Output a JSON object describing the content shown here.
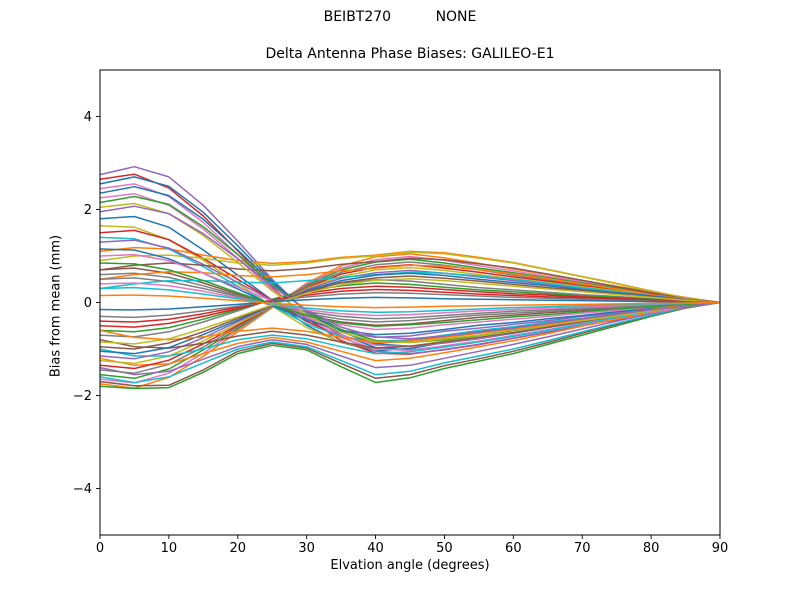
{
  "figure": {
    "suptitle": "BEIBT270          NONE",
    "title": "Delta Antenna Phase Biases: GALILEO-E1"
  },
  "chart_data": {
    "type": "line",
    "suptitle": "BEIBT270          NONE",
    "title": "Delta Antenna Phase Biases: GALILEO-E1",
    "xlabel": "Elvation angle (degrees)",
    "ylabel": "Bias from mean (mm)",
    "xlim": [
      0,
      90
    ],
    "ylim": [
      -5,
      5
    ],
    "xticks": [
      0,
      10,
      20,
      30,
      40,
      50,
      60,
      70,
      80,
      90
    ],
    "xtick_labels": [
      "0",
      "10",
      "20",
      "30",
      "40",
      "50",
      "60",
      "70",
      "80",
      "90"
    ],
    "yticks": [
      -4,
      -2,
      0,
      2,
      4
    ],
    "ytick_labels": [
      "−4",
      "−2",
      "0",
      "2",
      "4"
    ],
    "grid": false,
    "legend": "none",
    "line_width": 1.5,
    "color_cycle": [
      "#1f77b4",
      "#ff7f0e",
      "#2ca02c",
      "#d62728",
      "#9467bd",
      "#8c564b",
      "#e377c2",
      "#7f7f7f",
      "#bcbd22",
      "#17becf"
    ],
    "x": [
      0,
      5,
      10,
      15,
      20,
      25,
      30,
      35,
      40,
      45,
      50,
      55,
      60,
      65,
      70,
      75,
      80,
      85,
      90
    ],
    "series": [
      {
        "values": [
          1.8,
          1.85,
          1.62,
          1.13,
          0.59,
          0.05,
          -0.49,
          -0.86,
          -1.04,
          -0.99,
          -0.86,
          -0.76,
          -0.65,
          -0.54,
          -0.41,
          -0.31,
          -0.18,
          -0.07,
          0
        ]
      },
      {
        "values": [
          -1.75,
          -1.84,
          -1.61,
          -1.16,
          -0.63,
          -0.11,
          0.42,
          0.79,
          0.98,
          1.05,
          0.96,
          0.84,
          0.72,
          0.6,
          0.47,
          0.35,
          0.23,
          0.11,
          0
        ]
      },
      {
        "values": [
          -1.8,
          -1.85,
          -1.83,
          -1.5,
          -1.1,
          -0.92,
          -1.02,
          -1.38,
          -1.72,
          -1.62,
          -1.42,
          -1.26,
          -1.1,
          -0.9,
          -0.7,
          -0.5,
          -0.3,
          -0.12,
          0
        ]
      },
      {
        "values": [
          2.65,
          2.76,
          2.46,
          1.86,
          1.11,
          0.32,
          -0.34,
          -0.82,
          -1.09,
          -1.11,
          -1.01,
          -0.9,
          -0.77,
          -0.64,
          -0.5,
          -0.37,
          -0.24,
          -0.11,
          0
        ]
      },
      {
        "values": [
          2.75,
          2.92,
          2.7,
          2.09,
          1.32,
          0.5,
          -0.22,
          -0.74,
          -1.05,
          -1.1,
          -1.02,
          -0.91,
          -0.77,
          -0.63,
          -0.5,
          -0.36,
          -0.22,
          -0.11,
          0
        ]
      },
      {
        "values": [
          -1.7,
          -1.79,
          -1.78,
          -1.45,
          -1.05,
          -0.88,
          -0.98,
          -1.31,
          -1.63,
          -1.55,
          -1.36,
          -1.21,
          -1.05,
          -0.86,
          -0.66,
          -0.47,
          -0.28,
          -0.11,
          0
        ]
      },
      {
        "values": [
          -1.65,
          -1.73,
          -1.52,
          -1.09,
          -0.59,
          -0.1,
          0.4,
          0.74,
          0.92,
          0.99,
          0.91,
          0.79,
          0.68,
          0.56,
          0.45,
          0.33,
          0.21,
          0.1,
          0
        ]
      },
      {
        "values": [
          -0.7,
          -0.74,
          -0.63,
          -0.42,
          -0.18,
          0.07,
          0.28,
          0.42,
          0.49,
          0.46,
          0.39,
          0.32,
          0.27,
          0.22,
          0.17,
          0.13,
          0.08,
          0.04,
          0
        ]
      },
      {
        "values": [
          1.65,
          1.62,
          1.35,
          0.91,
          0.41,
          -0.08,
          -0.54,
          -0.86,
          -0.99,
          -0.94,
          -0.83,
          -0.71,
          -0.61,
          -0.5,
          -0.4,
          -0.28,
          -0.18,
          -0.08,
          0
        ]
      },
      {
        "values": [
          -1.6,
          -1.72,
          -1.6,
          -1.3,
          -1.0,
          -0.85,
          -0.95,
          -1.25,
          -1.55,
          -1.48,
          -1.3,
          -1.15,
          -1.0,
          -0.82,
          -0.63,
          -0.45,
          -0.27,
          -0.1,
          0
        ]
      },
      {
        "values": [
          2.55,
          2.7,
          2.5,
          1.94,
          1.22,
          0.46,
          -0.2,
          -0.69,
          -0.97,
          -1.02,
          -0.94,
          -0.84,
          -0.71,
          -0.59,
          -0.46,
          -0.33,
          -0.2,
          -0.1,
          0
        ]
      },
      {
        "values": [
          1.1,
          1.18,
          1.15,
          1.02,
          0.9,
          0.84,
          0.88,
          0.97,
          1.02,
          1.1,
          1.07,
          0.97,
          0.86,
          0.71,
          0.56,
          0.41,
          0.25,
          0.1,
          0
        ]
      },
      {
        "values": [
          -1.55,
          -1.63,
          -1.43,
          -1.02,
          -0.56,
          -0.09,
          0.37,
          0.7,
          0.87,
          0.93,
          0.85,
          0.74,
          0.64,
          0.53,
          0.42,
          0.31,
          0.2,
          0.09,
          0
        ]
      },
      {
        "values": [
          1.5,
          1.55,
          1.35,
          0.95,
          0.5,
          0.05,
          -0.41,
          -0.72,
          -0.87,
          -0.83,
          -0.72,
          -0.63,
          -0.54,
          -0.45,
          -0.35,
          -0.26,
          -0.15,
          -0.06,
          0
        ]
      },
      {
        "values": [
          -1.4,
          -1.55,
          -1.48,
          -1.22,
          -0.95,
          -0.8,
          -0.9,
          -1.15,
          -1.4,
          -1.35,
          -1.2,
          -1.05,
          -0.9,
          -0.74,
          -0.57,
          -0.4,
          -0.24,
          -0.09,
          0
        ]
      },
      {
        "values": [
          0.7,
          0.74,
          0.63,
          0.42,
          0.18,
          -0.07,
          -0.28,
          -0.42,
          -0.49,
          -0.46,
          -0.39,
          -0.32,
          -0.27,
          -0.22,
          -0.17,
          -0.13,
          -0.08,
          -0.04,
          0
        ]
      },
      {
        "values": [
          2.45,
          2.55,
          2.28,
          1.72,
          1.03,
          0.29,
          -0.32,
          -0.76,
          -1.0,
          -1.03,
          -0.93,
          -0.83,
          -0.71,
          -0.59,
          -0.47,
          -0.34,
          -0.22,
          -0.1,
          0
        ]
      },
      {
        "values": [
          -1.45,
          -1.52,
          -1.33,
          -0.96,
          -0.52,
          -0.09,
          0.35,
          0.65,
          0.81,
          0.87,
          0.8,
          0.7,
          0.59,
          0.49,
          0.39,
          0.29,
          0.19,
          0.09,
          0
        ]
      },
      {
        "values": [
          0.9,
          1.0,
          1.02,
          0.95,
          0.85,
          0.8,
          0.85,
          0.95,
          1.0,
          1.08,
          1.05,
          0.95,
          0.85,
          0.7,
          0.55,
          0.4,
          0.24,
          0.1,
          0
        ]
      },
      {
        "values": [
          1.4,
          1.37,
          1.15,
          0.77,
          0.35,
          -0.07,
          -0.46,
          -0.73,
          -0.84,
          -0.8,
          -0.7,
          -0.6,
          -0.52,
          -0.42,
          -0.34,
          -0.24,
          -0.15,
          -0.07,
          0
        ]
      },
      {
        "values": [
          2.35,
          2.49,
          2.3,
          1.79,
          1.13,
          0.42,
          -0.19,
          -0.63,
          -0.89,
          -0.94,
          -0.87,
          -0.78,
          -0.66,
          -0.54,
          -0.42,
          -0.31,
          -0.19,
          -0.09,
          0
        ]
      },
      {
        "values": [
          -1.2,
          -1.35,
          -1.32,
          -1.1,
          -0.88,
          -0.75,
          -0.85,
          -1.05,
          -1.25,
          -1.2,
          -1.08,
          -0.95,
          -0.82,
          -0.67,
          -0.51,
          -0.36,
          -0.21,
          -0.08,
          0
        ]
      },
      {
        "values": [
          -0.6,
          -0.63,
          -0.54,
          -0.36,
          -0.15,
          0.06,
          0.24,
          0.36,
          0.42,
          0.39,
          0.33,
          0.27,
          0.23,
          0.19,
          0.14,
          0.11,
          0.07,
          0.03,
          0
        ]
      },
      {
        "values": [
          -1.35,
          -1.42,
          -1.24,
          -0.89,
          -0.49,
          -0.08,
          0.32,
          0.61,
          0.76,
          0.81,
          0.74,
          0.65,
          0.55,
          0.46,
          0.36,
          0.27,
          0.18,
          0.08,
          0
        ]
      },
      {
        "values": [
          1.3,
          1.34,
          1.17,
          0.82,
          0.43,
          0.04,
          -0.35,
          -0.62,
          -0.75,
          -0.72,
          -0.62,
          -0.55,
          -0.47,
          -0.39,
          -0.3,
          -0.22,
          -0.13,
          -0.05,
          0
        ]
      },
      {
        "values": [
          0.7,
          0.8,
          0.85,
          0.8,
          0.72,
          0.68,
          0.73,
          0.82,
          0.88,
          0.95,
          0.92,
          0.83,
          0.74,
          0.61,
          0.48,
          0.34,
          0.21,
          0.08,
          0
        ]
      },
      {
        "values": [
          2.25,
          2.34,
          2.09,
          1.58,
          0.95,
          0.27,
          -0.29,
          -0.7,
          -0.92,
          -0.95,
          -0.86,
          -0.77,
          -0.65,
          -0.54,
          -0.43,
          -0.32,
          -0.2,
          -0.09,
          0
        ]
      },
      {
        "values": [
          0.6,
          0.63,
          0.54,
          0.36,
          0.15,
          -0.06,
          -0.24,
          -0.36,
          -0.42,
          -0.39,
          -0.33,
          -0.27,
          -0.23,
          -0.19,
          -0.14,
          -0.11,
          -0.07,
          -0.03,
          0
        ]
      },
      {
        "values": [
          -1.25,
          -1.31,
          -1.15,
          -0.83,
          -0.45,
          -0.08,
          0.3,
          0.56,
          0.7,
          0.75,
          0.69,
          0.6,
          0.51,
          0.43,
          0.34,
          0.25,
          0.16,
          0.08,
          0
        ]
      },
      {
        "values": [
          -1.0,
          -1.15,
          -1.15,
          -1.0,
          -0.8,
          -0.7,
          -0.78,
          -0.95,
          -1.1,
          -1.06,
          -0.96,
          -0.85,
          -0.73,
          -0.6,
          -0.46,
          -0.32,
          -0.19,
          -0.07,
          0
        ]
      },
      {
        "values": [
          1.15,
          1.13,
          0.94,
          0.63,
          0.29,
          -0.06,
          -0.38,
          -0.6,
          -0.69,
          -0.66,
          -0.58,
          -0.49,
          -0.43,
          -0.35,
          -0.28,
          -0.2,
          -0.13,
          -0.06,
          0
        ]
      },
      {
        "values": [
          0.5,
          0.6,
          0.66,
          0.64,
          0.58,
          0.55,
          0.6,
          0.68,
          0.74,
          0.8,
          0.78,
          0.7,
          0.62,
          0.51,
          0.4,
          0.29,
          0.17,
          0.07,
          0
        ]
      },
      {
        "values": [
          2.15,
          2.28,
          2.11,
          1.63,
          1.03,
          0.39,
          -0.17,
          -0.58,
          -0.82,
          -0.86,
          -0.8,
          -0.71,
          -0.6,
          -0.49,
          -0.39,
          -0.28,
          -0.17,
          -0.09,
          0
        ]
      },
      {
        "values": [
          -0.5,
          -0.53,
          -0.45,
          -0.3,
          -0.13,
          0.05,
          0.2,
          0.3,
          0.35,
          0.33,
          0.28,
          0.23,
          0.19,
          0.16,
          0.12,
          0.09,
          0.06,
          0.03,
          0
        ]
      },
      {
        "values": [
          -1.15,
          -1.21,
          -1.06,
          -0.76,
          -0.41,
          -0.07,
          0.28,
          0.52,
          0.64,
          0.69,
          0.63,
          0.55,
          0.47,
          0.39,
          0.31,
          0.23,
          0.15,
          0.07,
          0
        ]
      },
      {
        "values": [
          -0.8,
          -0.95,
          -0.98,
          -0.88,
          -0.72,
          -0.62,
          -0.7,
          -0.85,
          -0.98,
          -0.94,
          -0.85,
          -0.75,
          -0.65,
          -0.53,
          -0.41,
          -0.29,
          -0.17,
          -0.06,
          0
        ]
      },
      {
        "values": [
          1.0,
          1.03,
          0.9,
          0.63,
          0.33,
          0.03,
          -0.27,
          -0.48,
          -0.58,
          -0.55,
          -0.48,
          -0.42,
          -0.36,
          -0.3,
          -0.23,
          -0.17,
          -0.1,
          -0.04,
          0
        ]
      },
      {
        "values": [
          0.5,
          0.53,
          0.45,
          0.3,
          0.13,
          -0.05,
          -0.2,
          -0.3,
          -0.35,
          -0.33,
          -0.28,
          -0.23,
          -0.19,
          -0.16,
          -0.12,
          -0.09,
          -0.06,
          -0.03,
          0
        ]
      },
      {
        "values": [
          2.05,
          2.13,
          1.91,
          1.44,
          0.86,
          0.25,
          -0.27,
          -0.64,
          -0.84,
          -0.86,
          -0.78,
          -0.7,
          -0.59,
          -0.49,
          -0.39,
          -0.29,
          -0.18,
          -0.08,
          0
        ]
      },
      {
        "values": [
          0.3,
          0.4,
          0.47,
          0.47,
          0.44,
          0.42,
          0.47,
          0.54,
          0.6,
          0.65,
          0.63,
          0.57,
          0.5,
          0.41,
          0.32,
          0.23,
          0.14,
          0.05,
          0
        ]
      },
      {
        "values": [
          -1.05,
          -1.1,
          -0.97,
          -0.69,
          -0.38,
          -0.06,
          0.25,
          0.47,
          0.59,
          0.63,
          0.58,
          0.5,
          0.43,
          0.36,
          0.28,
          0.21,
          0.14,
          0.06,
          0
        ]
      },
      {
        "values": [
          -0.6,
          -0.75,
          -0.8,
          -0.74,
          -0.62,
          -0.55,
          -0.62,
          -0.75,
          -0.86,
          -0.83,
          -0.75,
          -0.66,
          -0.57,
          -0.47,
          -0.36,
          -0.25,
          -0.15,
          -0.05,
          0
        ]
      },
      {
        "values": [
          0.85,
          0.83,
          0.7,
          0.47,
          0.21,
          -0.04,
          -0.28,
          -0.44,
          -0.51,
          -0.48,
          -0.43,
          -0.37,
          -0.31,
          -0.26,
          -0.2,
          -0.14,
          -0.09,
          -0.04,
          0
        ]
      },
      {
        "values": [
          -0.4,
          -0.42,
          -0.36,
          -0.24,
          -0.1,
          0.04,
          0.16,
          0.24,
          0.28,
          0.26,
          0.22,
          0.18,
          0.15,
          0.12,
          0.1,
          0.07,
          0.04,
          0.02,
          0
        ]
      },
      {
        "values": [
          1.95,
          2.07,
          1.91,
          1.48,
          0.94,
          0.35,
          -0.16,
          -0.53,
          -0.74,
          -0.78,
          -0.72,
          -0.64,
          -0.55,
          -0.45,
          -0.35,
          -0.25,
          -0.16,
          -0.08,
          0
        ]
      },
      {
        "values": [
          -0.95,
          -1.0,
          -0.87,
          -0.63,
          -0.34,
          -0.06,
          0.23,
          0.43,
          0.53,
          0.57,
          0.52,
          0.46,
          0.39,
          0.32,
          0.26,
          0.19,
          0.12,
          0.06,
          0
        ]
      },
      {
        "values": [
          0.4,
          0.42,
          0.36,
          0.24,
          0.1,
          -0.04,
          -0.16,
          -0.24,
          -0.28,
          -0.26,
          -0.22,
          -0.18,
          -0.15,
          -0.12,
          -0.1,
          -0.07,
          -0.04,
          -0.02,
          0
        ]
      },
      {
        "values": [
          -0.3,
          -0.32,
          -0.27,
          -0.18,
          -0.08,
          0.03,
          0.12,
          0.18,
          0.21,
          0.2,
          0.17,
          0.14,
          0.11,
          0.09,
          0.07,
          0.05,
          0.03,
          0.02,
          0
        ]
      },
      {
        "values": [
          -0.85,
          -0.89,
          -0.78,
          -0.56,
          -0.31,
          -0.05,
          0.2,
          0.38,
          0.48,
          0.51,
          0.47,
          0.41,
          0.35,
          0.29,
          0.23,
          0.17,
          0.11,
          0.05,
          0
        ]
      },
      {
        "values": [
          0.3,
          0.32,
          0.27,
          0.18,
          0.08,
          -0.03,
          -0.12,
          -0.18,
          -0.21,
          -0.2,
          -0.17,
          -0.14,
          -0.11,
          -0.09,
          -0.07,
          -0.05,
          -0.03,
          -0.02,
          0
        ]
      },
      {
        "values": [
          -0.15,
          -0.16,
          -0.14,
          -0.09,
          -0.04,
          0.02,
          0.06,
          0.09,
          0.11,
          0.1,
          0.08,
          0.07,
          0.06,
          0.05,
          0.04,
          0.03,
          0.02,
          0.01,
          0
        ]
      },
      {
        "values": [
          0.15,
          0.16,
          0.14,
          0.09,
          0.04,
          -0.02,
          -0.06,
          -0.09,
          -0.11,
          -0.1,
          -0.08,
          -0.07,
          -0.06,
          -0.05,
          -0.04,
          -0.03,
          -0.02,
          -0.01,
          0
        ]
      }
    ]
  }
}
